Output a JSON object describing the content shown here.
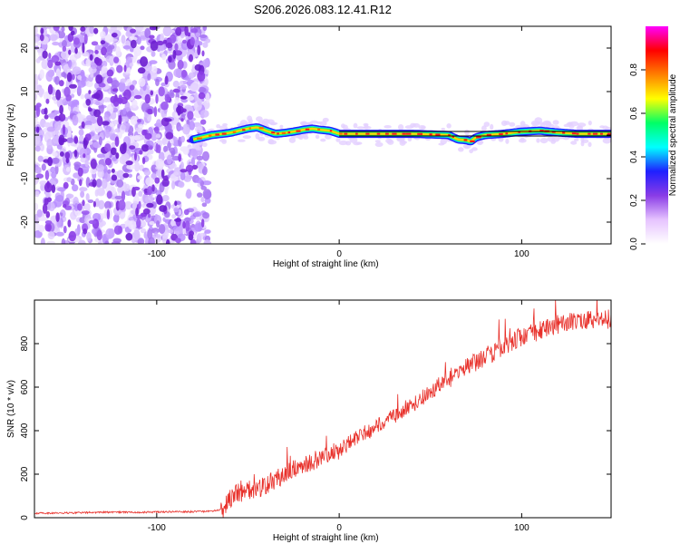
{
  "title": "S206.2026.083.12.41.R12",
  "chart_data": [
    {
      "type": "heatmap",
      "title": "S206.2026.083.12.41.R12",
      "xlabel": "Height of straight line (km)",
      "ylabel": "Frequency (Hz)",
      "xlim": [
        -167,
        149
      ],
      "ylim": [
        -25,
        25
      ],
      "xticks": [
        -100,
        0,
        100
      ],
      "yticks": [
        -20,
        -10,
        0,
        10,
        20
      ],
      "noise_region_x": [
        -167,
        -70
      ],
      "signal_start_x": -80,
      "ridge": {
        "x": [
          -80,
          -70,
          -60,
          -50,
          -45,
          -40,
          -35,
          -30,
          -25,
          -20,
          -15,
          -10,
          -5,
          0,
          20,
          40,
          60,
          65,
          70,
          72,
          75,
          80,
          90,
          100,
          110,
          120,
          130,
          140,
          149
        ],
        "freq": [
          -1,
          0,
          0.5,
          1.5,
          1.8,
          1,
          0.3,
          0.5,
          0.8,
          1.2,
          1.5,
          1.2,
          1,
          0.3,
          0.3,
          0.3,
          0,
          -1,
          -1.2,
          -1.5,
          -0.5,
          0,
          0.3,
          0.8,
          1,
          0.6,
          0.3,
          0.3,
          0.3
        ]
      },
      "colorbar": {
        "label": "Normalized spectral amplitude",
        "range": [
          0,
          1
        ],
        "ticks": [
          "0.0",
          "0.2",
          "0.4",
          "0.6",
          "0.8"
        ],
        "tick_values": [
          0,
          0.2,
          0.4,
          0.6,
          0.8
        ],
        "colors": [
          "#ffffff",
          "#e6c3ff",
          "#8a3ce6",
          "#1f1fff",
          "#00ffff",
          "#00ff66",
          "#ffff00",
          "#ff8000",
          "#ff0000",
          "#ff00ff"
        ]
      }
    },
    {
      "type": "line",
      "xlabel": "Height of straight line (km)",
      "ylabel": "SNR (10 * v/v)",
      "xlim": [
        -167,
        149
      ],
      "ylim": [
        0,
        1000
      ],
      "xticks": [
        -100,
        0,
        100
      ],
      "yticks": [
        0,
        200,
        400,
        600,
        800
      ],
      "series": [
        {
          "name": "SNR",
          "color": "#e8302a",
          "x": [
            -167,
            -150,
            -130,
            -110,
            -90,
            -75,
            -70,
            -63,
            -58,
            -52,
            -45,
            -40,
            -30,
            -20,
            -10,
            0,
            10,
            20,
            30,
            40,
            50,
            60,
            70,
            80,
            90,
            100,
            110,
            120,
            130,
            140,
            149
          ],
          "y": [
            20,
            22,
            25,
            25,
            27,
            28,
            30,
            40,
            110,
            120,
            135,
            150,
            200,
            240,
            280,
            310,
            370,
            420,
            470,
            520,
            580,
            640,
            690,
            740,
            790,
            830,
            860,
            890,
            900,
            905,
            915
          ]
        }
      ]
    }
  ]
}
